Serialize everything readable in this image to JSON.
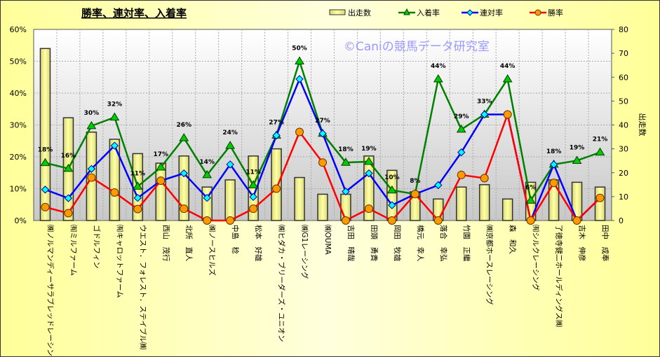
{
  "chart_data": {
    "type": "bar+line",
    "title": "勝率、連対率、入着率",
    "watermark": "©Caniの競馬データ研究室",
    "y2label": "出走数",
    "ylim": [
      0,
      60
    ],
    "y2lim": [
      0,
      80
    ],
    "yticks": [
      "0%",
      "10%",
      "20%",
      "30%",
      "40%",
      "50%",
      "60%"
    ],
    "y2ticks": [
      "0",
      "10",
      "20",
      "30",
      "40",
      "50",
      "60",
      "70",
      "80"
    ],
    "legend": [
      "出走数",
      "入着率",
      "連対率",
      "勝率"
    ],
    "legend_position": "top-right",
    "grid": true,
    "categories": [
      "㈱ノルマンディーサラブレッドレーシング",
      "㈲ミルファーム",
      "ゴドルフィン",
      "㈲キャロットファーム",
      "ウエスト．フォレスト．ステイブル㈱",
      "西山　茂行",
      "北所　直人",
      "㈱ノースヒルズ",
      "中島　稔",
      "松本　好雄",
      "㈱ヒダカ・ブリーダーズ・ユニオン",
      "㈱G1レーシング",
      "㈱OUMA",
      "吉田　晴哉",
      "田頭　勇貴",
      "岡田　牧雄",
      "橋元　幸人",
      "落合　幸弘",
      "竹園　正繼",
      "㈱京都ホースレーシング",
      "森　和久",
      "㈲シルクレーシング",
      "了徳寺健二ホールディングス㈱",
      "吉木　伸彦",
      "田中　成奉"
    ],
    "series": [
      {
        "name": "出走数",
        "type": "bar",
        "axis": "right",
        "color": "#ffff99",
        "values": [
          72,
          43,
          37,
          34,
          28,
          24,
          27,
          14,
          17,
          27,
          30,
          18,
          11,
          11,
          27,
          21,
          12,
          9,
          14,
          15,
          9,
          16,
          17,
          16,
          14
        ]
      },
      {
        "name": "入着率",
        "type": "line",
        "axis": "left",
        "color": "#008000",
        "marker": "#00cc00",
        "values": [
          18.1,
          16.3,
          29.7,
          32.4,
          10.7,
          16.7,
          25.9,
          14.3,
          23.5,
          11.1,
          26.7,
          50.0,
          27.3,
          18.2,
          18.5,
          9.5,
          8.3,
          44.4,
          28.6,
          33.3,
          44.4,
          6.3,
          17.6,
          18.8,
          21.4
        ],
        "data_labels": [
          "18%",
          "16%",
          "30%",
          "32%",
          "11%",
          "17%",
          "26%",
          "14%",
          "24%",
          "11%",
          "27%",
          "50%",
          "27%",
          "18%",
          "19%",
          "10%",
          "8%",
          "44%",
          "29%",
          "33%",
          "44%",
          "6%",
          "18%",
          "19%",
          "21%"
        ]
      },
      {
        "name": "連対率",
        "type": "line",
        "axis": "left",
        "color": "#0000ff",
        "marker": "#00ffff",
        "values": [
          9.7,
          7.0,
          16.2,
          23.5,
          7.1,
          12.5,
          14.8,
          7.1,
          17.6,
          7.4,
          26.7,
          44.4,
          27.3,
          9.1,
          14.8,
          4.8,
          8.3,
          11.1,
          21.4,
          33.3,
          33.3,
          0,
          17.6,
          0,
          7.1
        ]
      },
      {
        "name": "勝率",
        "type": "line",
        "axis": "left",
        "color": "#ff0000",
        "marker": "#ff9900",
        "values": [
          4.2,
          2.3,
          13.5,
          8.8,
          3.6,
          12.5,
          3.7,
          0,
          0,
          3.7,
          10.0,
          27.8,
          18.2,
          0,
          3.7,
          0,
          8.3,
          0,
          14.3,
          13.3,
          33.3,
          0,
          11.8,
          0,
          7.1
        ]
      }
    ]
  }
}
